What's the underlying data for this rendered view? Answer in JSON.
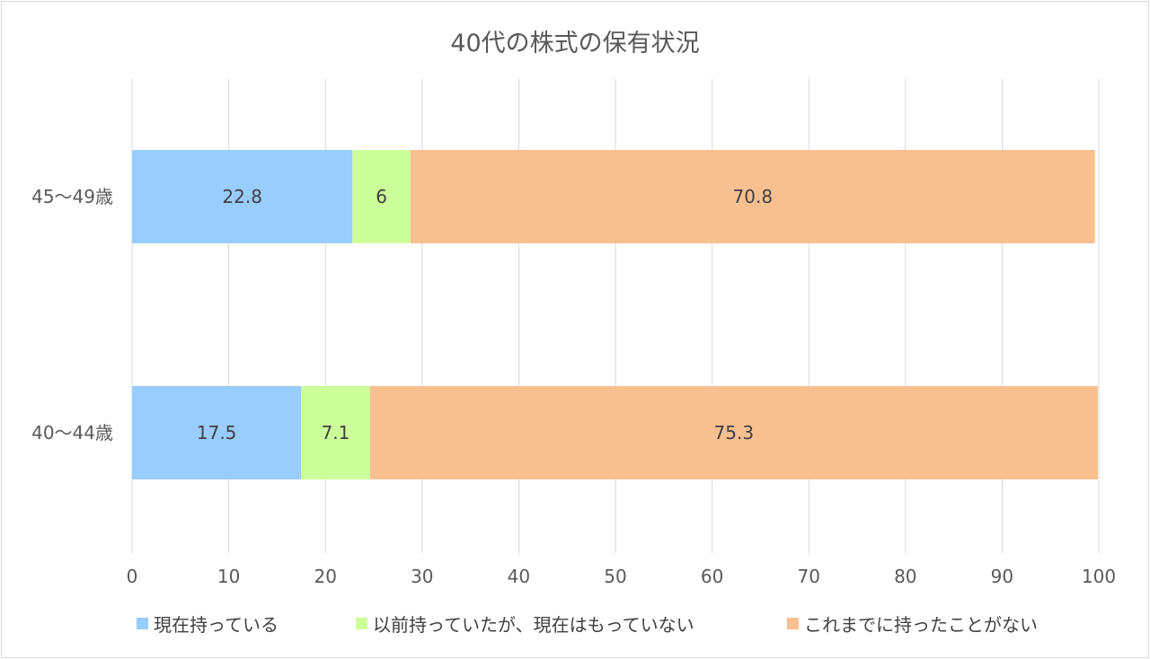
{
  "chart_data": {
    "type": "bar",
    "orientation": "horizontal",
    "stacked": true,
    "title": "40代の株式の保有状況",
    "categories": [
      "45～49歳",
      "40～44歳"
    ],
    "series": [
      {
        "name": "現在持っている",
        "values": [
          22.8,
          17.5
        ],
        "color": "#99ccff"
      },
      {
        "name": "以前持っていたが、現在はもっていない",
        "values": [
          6,
          7.1
        ],
        "color": "#ccff99"
      },
      {
        "name": "これまでに持ったことがない",
        "values": [
          70.8,
          75.3
        ],
        "color": "#f8c091"
      }
    ],
    "xlim": [
      0,
      100
    ],
    "xticks": [
      "0",
      "10",
      "20",
      "30",
      "40",
      "50",
      "60",
      "70",
      "80",
      "90",
      "100"
    ],
    "grid": true,
    "legend": "bottom",
    "data_labels": true
  }
}
